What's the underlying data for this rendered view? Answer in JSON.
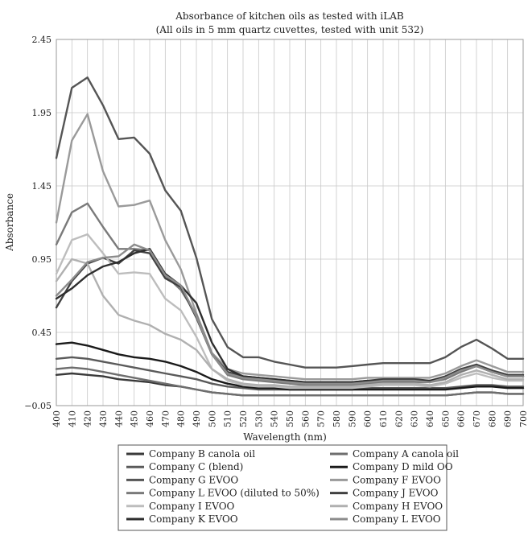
{
  "chart_data": {
    "type": "line",
    "title": "Absorbance of kitchen oils as tested with iLAB",
    "subtitle": "(All oils in 5 mm quartz cuvettes, tested with unit 532)",
    "xlabel": "Wavelength (nm)",
    "ylabel": "Absorbance",
    "xlim": [
      400,
      700
    ],
    "ylim": [
      -0.05,
      2.45
    ],
    "x_ticks": [
      400,
      410,
      420,
      430,
      440,
      450,
      460,
      470,
      480,
      490,
      500,
      510,
      520,
      530,
      540,
      550,
      560,
      570,
      580,
      590,
      600,
      610,
      620,
      630,
      640,
      650,
      660,
      670,
      680,
      690,
      700
    ],
    "y_ticks": [
      -0.05,
      0.45,
      0.95,
      1.45,
      1.95,
      2.45
    ],
    "y_tick_labels": [
      "−0.05",
      "0.45",
      "0.95",
      "1.45",
      "1.95",
      "2.45"
    ],
    "grid": true,
    "legend_position": "bottom",
    "x": [
      400,
      410,
      420,
      430,
      440,
      450,
      460,
      470,
      480,
      490,
      500,
      510,
      520,
      530,
      540,
      550,
      560,
      570,
      580,
      590,
      600,
      610,
      620,
      630,
      640,
      650,
      660,
      670,
      680,
      690,
      700
    ],
    "series": [
      {
        "name": "Company B canola oil",
        "color": "#3a3a3a",
        "values": [
          0.16,
          0.17,
          0.16,
          0.15,
          0.13,
          0.12,
          0.11,
          0.09,
          0.08,
          0.06,
          0.04,
          0.03,
          0.02,
          0.02,
          0.02,
          0.02,
          0.02,
          0.02,
          0.02,
          0.02,
          0.02,
          0.02,
          0.02,
          0.02,
          0.02,
          0.02,
          0.03,
          0.04,
          0.04,
          0.03,
          0.03
        ]
      },
      {
        "name": "Company A canola oil",
        "color": "#6e6e6e",
        "values": [
          0.2,
          0.21,
          0.2,
          0.18,
          0.16,
          0.14,
          0.12,
          0.1,
          0.08,
          0.06,
          0.04,
          0.03,
          0.02,
          0.02,
          0.02,
          0.02,
          0.02,
          0.02,
          0.02,
          0.02,
          0.02,
          0.02,
          0.02,
          0.02,
          0.02,
          0.02,
          0.03,
          0.04,
          0.04,
          0.03,
          0.03
        ]
      },
      {
        "name": "Company C (blend)",
        "color": "#5a5a5a",
        "values": [
          0.27,
          0.28,
          0.27,
          0.25,
          0.23,
          0.21,
          0.19,
          0.17,
          0.15,
          0.13,
          0.1,
          0.08,
          0.07,
          0.06,
          0.06,
          0.06,
          0.06,
          0.06,
          0.06,
          0.06,
          0.07,
          0.07,
          0.07,
          0.07,
          0.07,
          0.07,
          0.08,
          0.09,
          0.09,
          0.08,
          0.08
        ]
      },
      {
        "name": "Company D mild OO",
        "color": "#1a1a1a",
        "values": [
          0.37,
          0.38,
          0.36,
          0.33,
          0.3,
          0.28,
          0.27,
          0.25,
          0.22,
          0.18,
          0.13,
          0.1,
          0.08,
          0.07,
          0.07,
          0.06,
          0.06,
          0.06,
          0.06,
          0.06,
          0.06,
          0.06,
          0.06,
          0.06,
          0.06,
          0.06,
          0.07,
          0.08,
          0.08,
          0.07,
          0.07
        ]
      },
      {
        "name": "Company G EVOO",
        "color": "#555555",
        "values": [
          1.64,
          2.12,
          2.19,
          2.0,
          1.77,
          1.78,
          1.67,
          1.42,
          1.28,
          0.96,
          0.54,
          0.35,
          0.28,
          0.28,
          0.25,
          0.23,
          0.21,
          0.21,
          0.21,
          0.22,
          0.23,
          0.24,
          0.24,
          0.24,
          0.24,
          0.28,
          0.35,
          0.4,
          0.34,
          0.27,
          0.27
        ]
      },
      {
        "name": "Company F EVOO",
        "color": "#9a9a9a",
        "values": [
          1.2,
          1.76,
          1.94,
          1.55,
          1.31,
          1.32,
          1.35,
          1.08,
          0.88,
          0.58,
          0.31,
          0.2,
          0.17,
          0.16,
          0.15,
          0.14,
          0.13,
          0.13,
          0.13,
          0.13,
          0.14,
          0.14,
          0.14,
          0.14,
          0.14,
          0.17,
          0.22,
          0.26,
          0.22,
          0.18,
          0.18
        ]
      },
      {
        "name": "Company L EVOO (diluted to 50%)",
        "color": "#7a7a7a",
        "values": [
          1.05,
          1.27,
          1.33,
          1.17,
          1.02,
          1.02,
          1.01,
          0.84,
          0.74,
          0.57,
          0.3,
          0.16,
          0.13,
          0.12,
          0.11,
          0.1,
          0.09,
          0.09,
          0.09,
          0.09,
          0.1,
          0.11,
          0.11,
          0.11,
          0.11,
          0.13,
          0.18,
          0.22,
          0.18,
          0.15,
          0.15
        ]
      },
      {
        "name": "Company J EVOO",
        "color": "#404040",
        "values": [
          0.62,
          0.8,
          0.92,
          0.96,
          0.92,
          1.01,
          0.99,
          0.82,
          0.76,
          0.55,
          0.3,
          0.18,
          0.15,
          0.14,
          0.13,
          0.12,
          0.11,
          0.11,
          0.11,
          0.11,
          0.12,
          0.13,
          0.13,
          0.13,
          0.12,
          0.15,
          0.2,
          0.23,
          0.19,
          0.16,
          0.16
        ]
      },
      {
        "name": "Company I EVOO",
        "color": "#bdbdbd",
        "values": [
          0.85,
          1.08,
          1.12,
          0.99,
          0.85,
          0.86,
          0.85,
          0.68,
          0.6,
          0.42,
          0.2,
          0.12,
          0.09,
          0.08,
          0.08,
          0.07,
          0.07,
          0.07,
          0.07,
          0.07,
          0.08,
          0.09,
          0.09,
          0.09,
          0.08,
          0.1,
          0.14,
          0.17,
          0.14,
          0.12,
          0.12
        ]
      },
      {
        "name": "Company H EVOO",
        "color": "#b0b0b0",
        "values": [
          0.8,
          0.95,
          0.92,
          0.7,
          0.57,
          0.53,
          0.5,
          0.44,
          0.4,
          0.33,
          0.2,
          0.13,
          0.1,
          0.09,
          0.09,
          0.08,
          0.08,
          0.08,
          0.08,
          0.08,
          0.09,
          0.1,
          0.1,
          0.1,
          0.09,
          0.11,
          0.16,
          0.19,
          0.16,
          0.13,
          0.13
        ]
      },
      {
        "name": "Company K EVOO",
        "color": "#2e2e2e",
        "values": [
          0.68,
          0.75,
          0.84,
          0.9,
          0.93,
          0.99,
          1.02,
          0.85,
          0.77,
          0.65,
          0.38,
          0.2,
          0.15,
          0.14,
          0.13,
          0.12,
          0.11,
          0.11,
          0.11,
          0.11,
          0.12,
          0.12,
          0.12,
          0.12,
          0.12,
          0.14,
          0.19,
          0.22,
          0.18,
          0.15,
          0.15
        ]
      },
      {
        "name": "Company L EVOO",
        "color": "#8c8c8c",
        "values": [
          0.7,
          0.81,
          0.93,
          0.96,
          0.97,
          1.05,
          1.01,
          0.84,
          0.77,
          0.56,
          0.3,
          0.17,
          0.14,
          0.13,
          0.12,
          0.11,
          0.1,
          0.1,
          0.1,
          0.1,
          0.11,
          0.12,
          0.12,
          0.12,
          0.11,
          0.14,
          0.19,
          0.22,
          0.18,
          0.15,
          0.15
        ]
      }
    ],
    "legend_entries": [
      {
        "name": "Company B canola oil",
        "color": "#3a3a3a"
      },
      {
        "name": "Company A canola oil",
        "color": "#6e6e6e"
      },
      {
        "name": "Company C (blend)",
        "color": "#5a5a5a"
      },
      {
        "name": "Company D mild OO",
        "color": "#1a1a1a"
      },
      {
        "name": "Company G EVOO",
        "color": "#555555"
      },
      {
        "name": "Company F EVOO",
        "color": "#9a9a9a"
      },
      {
        "name": "Company L EVOO (diluted to 50%)",
        "color": "#7a7a7a"
      },
      {
        "name": "Company J EVOO",
        "color": "#404040"
      },
      {
        "name": "Company I EVOO",
        "color": "#bdbdbd"
      },
      {
        "name": "Company H EVOO",
        "color": "#b0b0b0"
      },
      {
        "name": "Company K EVOO",
        "color": "#2e2e2e"
      },
      {
        "name": "Company L EVOO",
        "color": "#8c8c8c"
      }
    ]
  }
}
